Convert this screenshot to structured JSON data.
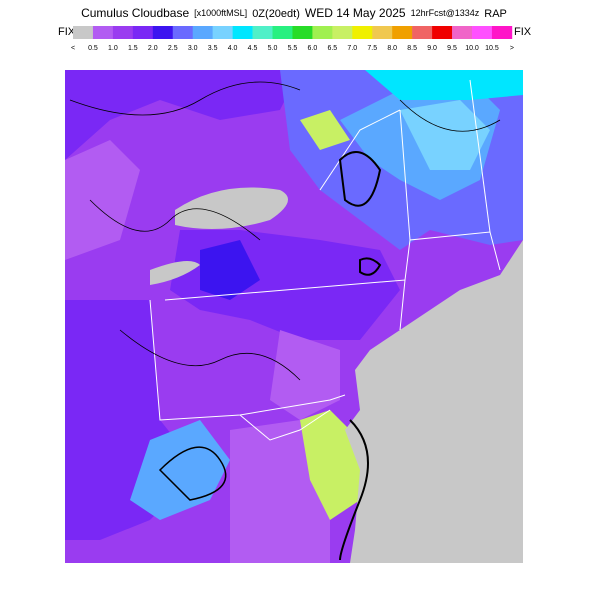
{
  "header": {
    "title": [
      "Cumulus Cloudbase",
      "[x1000ftMSL]",
      "0Z(20edt)",
      "WED 14 May 2025",
      "12hrFcst@1334z",
      "RAP"
    ],
    "fix_left": "FIX",
    "fix_right": "FIX"
  },
  "colorbar": {
    "labels": [
      "<",
      "0.5",
      "1.0",
      "1.5",
      "2.0",
      "2.5",
      "3.0",
      "3.5",
      "4.0",
      "4.5",
      "5.0",
      "5.5",
      "6.0",
      "6.5",
      "7.0",
      "7.5",
      "8.0",
      "8.5",
      "9.0",
      "9.5",
      "10.0",
      "10.5",
      ">"
    ],
    "colors": [
      "#c8c8c8",
      "#b25cf2",
      "#9a3cf0",
      "#7a28f5",
      "#3c14f0",
      "#6a6aff",
      "#5aa8ff",
      "#78d2ff",
      "#00e6ff",
      "#50f0c8",
      "#28f080",
      "#28dc28",
      "#a0f050",
      "#c8f064",
      "#f0f000",
      "#f0c850",
      "#f0a000",
      "#f06464",
      "#f00000",
      "#f064c8",
      "#ff50ff",
      "#ff14c8"
    ]
  }
}
